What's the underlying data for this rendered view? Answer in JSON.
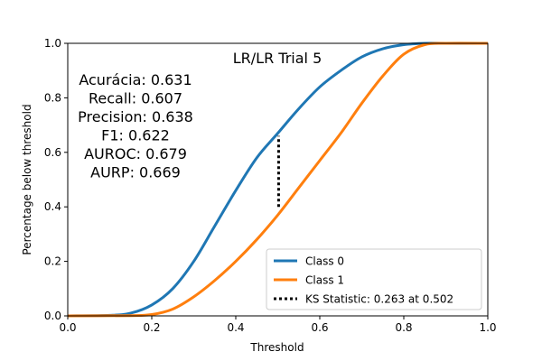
{
  "chart_data": {
    "type": "line",
    "title": "LR/LR Trial 5",
    "xlabel": "Threshold",
    "ylabel": "Percentage below threshold",
    "xlim": [
      0.0,
      1.0
    ],
    "ylim": [
      0.0,
      1.0
    ],
    "x_ticks": [
      "0.0",
      "0.2",
      "0.4",
      "0.6",
      "0.8",
      "1.0"
    ],
    "y_ticks": [
      "0.0",
      "0.2",
      "0.4",
      "0.6",
      "0.8",
      "1.0"
    ],
    "grid": false,
    "legend_position": "lower right",
    "metrics_lines": [
      "Acurácia: 0.631",
      "Recall: 0.607",
      "Precision: 0.638",
      "F1: 0.622",
      "AUROC: 0.679",
      "AURP: 0.669"
    ],
    "series": [
      {
        "name": "Class 0",
        "color": "#1f77b4",
        "x": [
          0.0,
          0.1,
          0.15,
          0.2,
          0.25,
          0.3,
          0.35,
          0.4,
          0.45,
          0.5,
          0.55,
          0.6,
          0.65,
          0.7,
          0.75,
          0.8,
          0.85,
          0.9,
          1.0
        ],
        "y": [
          0.0,
          0.002,
          0.01,
          0.04,
          0.1,
          0.2,
          0.33,
          0.46,
          0.58,
          0.67,
          0.76,
          0.84,
          0.9,
          0.95,
          0.98,
          0.995,
          1.0,
          1.0,
          1.0
        ]
      },
      {
        "name": "Class 1",
        "color": "#ff7f0e",
        "x": [
          0.0,
          0.15,
          0.2,
          0.25,
          0.3,
          0.35,
          0.4,
          0.45,
          0.5,
          0.55,
          0.6,
          0.65,
          0.7,
          0.75,
          0.8,
          0.85,
          0.9,
          1.0
        ],
        "y": [
          0.0,
          0.001,
          0.005,
          0.025,
          0.07,
          0.13,
          0.2,
          0.28,
          0.37,
          0.47,
          0.57,
          0.67,
          0.78,
          0.88,
          0.96,
          0.995,
          1.0,
          1.0
        ]
      }
    ],
    "ks_statistic": {
      "label": "KS Statistic: 0.263 at 0.502",
      "x": 0.502,
      "y_low": 0.4,
      "y_high": 0.66,
      "color": "#000000"
    }
  }
}
